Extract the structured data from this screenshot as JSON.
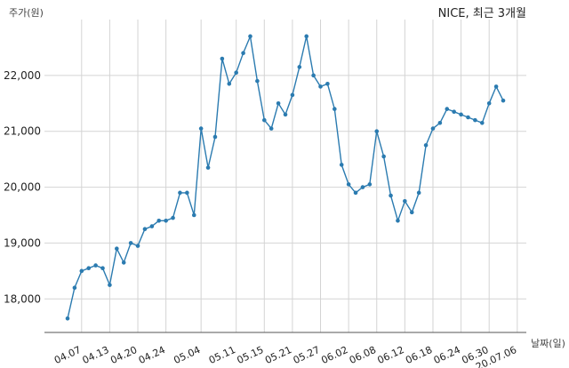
{
  "chart_data": {
    "type": "line",
    "title": "NICE, 최근 3개월",
    "ylabel": "주가(원)",
    "xlabel": "날짜(일)",
    "ylim": [
      17400,
      23000
    ],
    "yticks": [
      "18,000",
      "19,000",
      "20,000",
      "21,000",
      "22,000"
    ],
    "ytick_values": [
      18000,
      19000,
      20000,
      21000,
      22000
    ],
    "xtick_labels": [
      "04.07",
      "04.13",
      "04.20",
      "04.24",
      "05.04",
      "05.11",
      "05.15",
      "05.21",
      "05.27",
      "06.02",
      "06.08",
      "06.12",
      "06.18",
      "06.24",
      "06.30",
      "20.07.06"
    ],
    "xtick_index": [
      2,
      6,
      10,
      14,
      19,
      24,
      28,
      32,
      36,
      40,
      44,
      48,
      52,
      56,
      60,
      64
    ],
    "grid": true,
    "series": [
      {
        "color": "#2b7bb0",
        "values": [
          17650,
          18200,
          18500,
          18550,
          18600,
          18550,
          18250,
          18900,
          18650,
          19000,
          18950,
          19250,
          19300,
          19400,
          19400,
          19450,
          19900,
          19900,
          19500,
          21050,
          20350,
          20900,
          22300,
          21850,
          22050,
          22400,
          22700,
          21900,
          21200,
          21050,
          21500,
          21300,
          21650,
          22150,
          22700,
          22000,
          21800,
          21850,
          21400,
          20400,
          20050,
          19900,
          20000,
          20050,
          21000,
          20550,
          19850,
          19400,
          19750,
          19550,
          19900,
          20750,
          21050,
          21150,
          21400,
          21350,
          21300,
          21250,
          21200,
          21150,
          21500,
          21800,
          21550
        ]
      }
    ]
  }
}
